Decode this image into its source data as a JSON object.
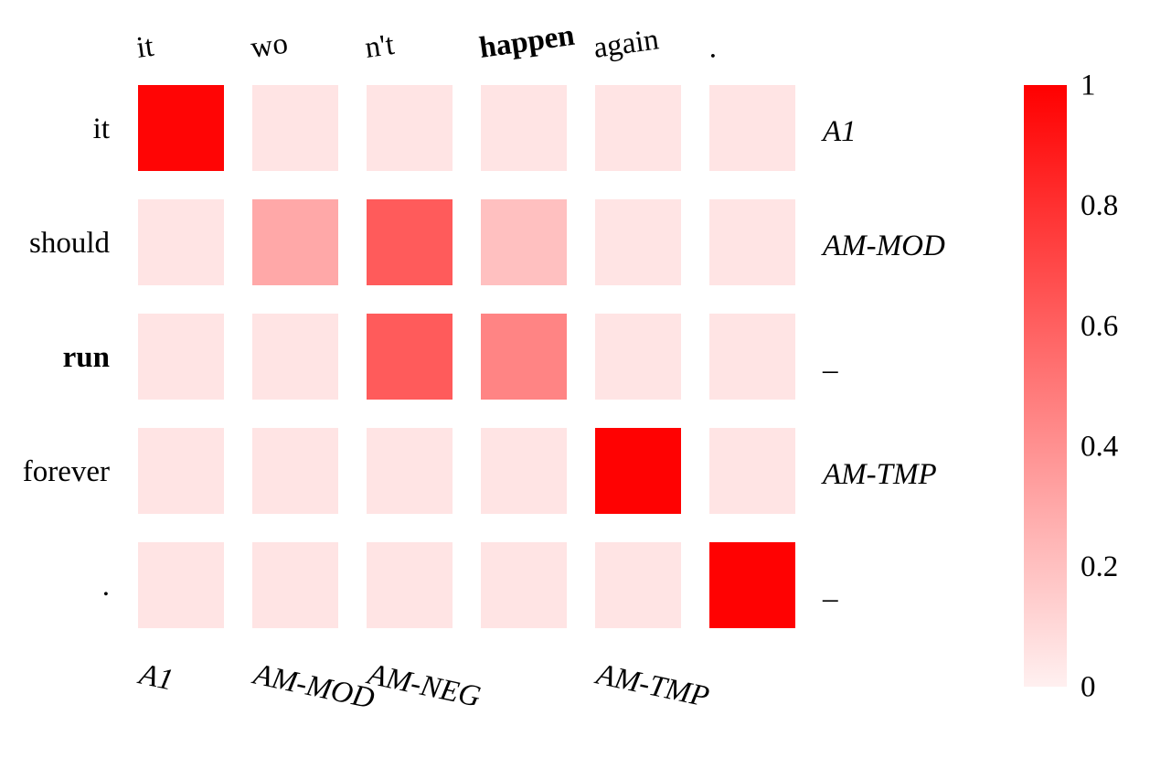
{
  "chart_data": {
    "type": "heatmap",
    "x_tokens": [
      "it",
      "wo",
      "n't",
      "happen",
      "again",
      "."
    ],
    "x_predicate": "happen",
    "x_role_labels": [
      "A1",
      "AM-MOD",
      "AM-NEG",
      "",
      "AM-TMP",
      ""
    ],
    "y_tokens": [
      "it",
      "should",
      "run",
      "forever",
      "."
    ],
    "y_predicate": "run",
    "y_role_labels": [
      "A1",
      "AM-MOD",
      "_",
      "AM-TMP",
      "_"
    ],
    "values": [
      [
        0.98,
        0.05,
        0.05,
        0.05,
        0.05,
        0.05
      ],
      [
        0.05,
        0.3,
        0.62,
        0.2,
        0.05,
        0.05
      ],
      [
        0.05,
        0.05,
        0.62,
        0.45,
        0.05,
        0.05
      ],
      [
        0.05,
        0.05,
        0.05,
        0.05,
        0.99,
        0.05
      ],
      [
        0.05,
        0.05,
        0.05,
        0.05,
        0.05,
        0.99
      ]
    ],
    "colorbar": {
      "min": 0,
      "max": 1,
      "ticks": [
        "0",
        "0.2",
        "0.4",
        "0.6",
        "0.8",
        "1"
      ],
      "color_low": "#fff0f0",
      "color_high": "#ff0000"
    }
  }
}
